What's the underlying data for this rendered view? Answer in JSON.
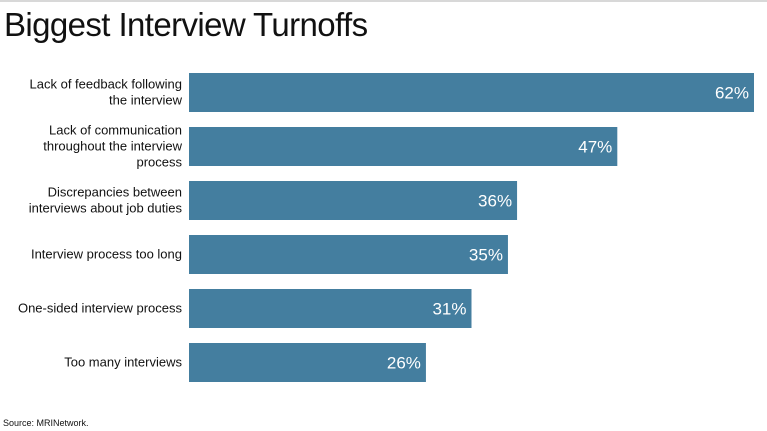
{
  "title": "Biggest Interview Turnoffs",
  "source": "Source: MRINetwork.",
  "colors": {
    "bar": "#447e9f",
    "value_text": "#ffffff"
  },
  "chart_data": {
    "type": "bar",
    "orientation": "horizontal",
    "title": "Biggest Interview Turnoffs",
    "categories": [
      [
        "Lack of feedback following",
        "the interview"
      ],
      [
        "Lack of communication",
        "throughout the interview",
        "process"
      ],
      [
        "Discrepancies between",
        "interviews about job duties"
      ],
      [
        "Interview process too long"
      ],
      [
        "One-sided interview process"
      ],
      [
        "Too many interviews"
      ]
    ],
    "values": [
      62,
      47,
      36,
      35,
      31,
      26
    ],
    "value_labels": [
      "62%",
      "47%",
      "36%",
      "35%",
      "31%",
      "26%"
    ],
    "xlim": [
      0,
      62
    ],
    "grid": false,
    "legend": "none"
  }
}
